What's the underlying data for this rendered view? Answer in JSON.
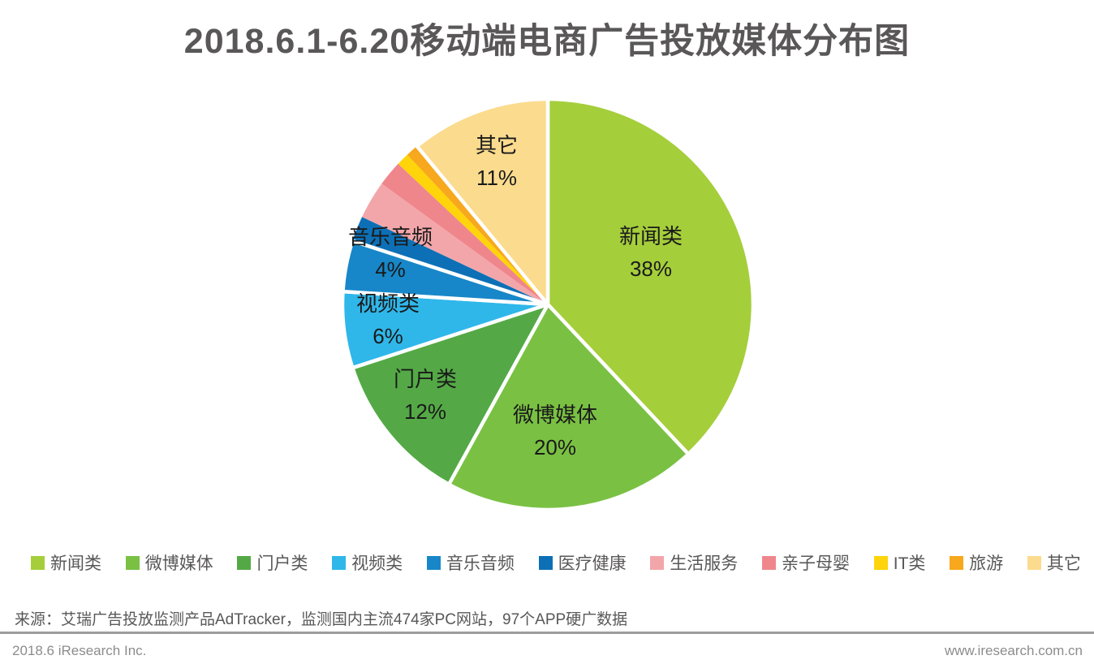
{
  "title": "2018.6.1-6.20移动端电商广告投放媒体分布图",
  "chart_data": {
    "type": "pie",
    "title": "2018.6.1-6.20移动端电商广告投放媒体分布图",
    "unit": "%",
    "start_angle": "top",
    "direction": "clockwise",
    "legend_position": "bottom",
    "slices": [
      {
        "key": "news",
        "label": "新闻类",
        "value": 38,
        "color": "#A5CE3B",
        "labeled_on_pie": true
      },
      {
        "key": "weibo-media",
        "label": "微博媒体",
        "value": 20,
        "color": "#7AC143",
        "labeled_on_pie": true
      },
      {
        "key": "portal",
        "label": "门户类",
        "value": 12,
        "color": "#54A946",
        "labeled_on_pie": true
      },
      {
        "key": "video",
        "label": "视频类",
        "value": 6,
        "color": "#2FB7EA",
        "labeled_on_pie": true
      },
      {
        "key": "music-audio",
        "label": "音乐音频",
        "value": 4,
        "color": "#1787C9",
        "labeled_on_pie": true
      },
      {
        "key": "medical-health",
        "label": "医疗健康",
        "value": 2,
        "color": "#0D70B6",
        "labeled_on_pie": false
      },
      {
        "key": "life-services",
        "label": "生活服务",
        "value": 3,
        "color": "#F3A6AA",
        "labeled_on_pie": false
      },
      {
        "key": "maternal-infant",
        "label": "亲子母婴",
        "value": 2,
        "color": "#EF868C",
        "labeled_on_pie": false
      },
      {
        "key": "it",
        "label": "IT类",
        "value": 1,
        "color": "#FFD40A",
        "labeled_on_pie": false
      },
      {
        "key": "travel",
        "label": "旅游",
        "value": 1,
        "color": "#F7A81C",
        "labeled_on_pie": false
      },
      {
        "key": "other",
        "label": "其它",
        "value": 11,
        "color": "#FBDB8E",
        "labeled_on_pie": true
      }
    ]
  },
  "source": "来源：艾瑞广告投放监测产品AdTracker，监测国内主流474家PC网站，97个APP硬广数据",
  "footer": {
    "left": "2018.6 iResearch Inc.",
    "right": "www.iresearch.com.cn"
  },
  "colors": {
    "title_text": "#595757",
    "pie_label_text": "#1A1A1A",
    "legend_text": "#595757",
    "source_text": "#595757",
    "footer_text": "#8C8C8C",
    "divider": "#9C9C9C",
    "slice_border": "#FFFFFF",
    "background": "#FFFFFF"
  }
}
